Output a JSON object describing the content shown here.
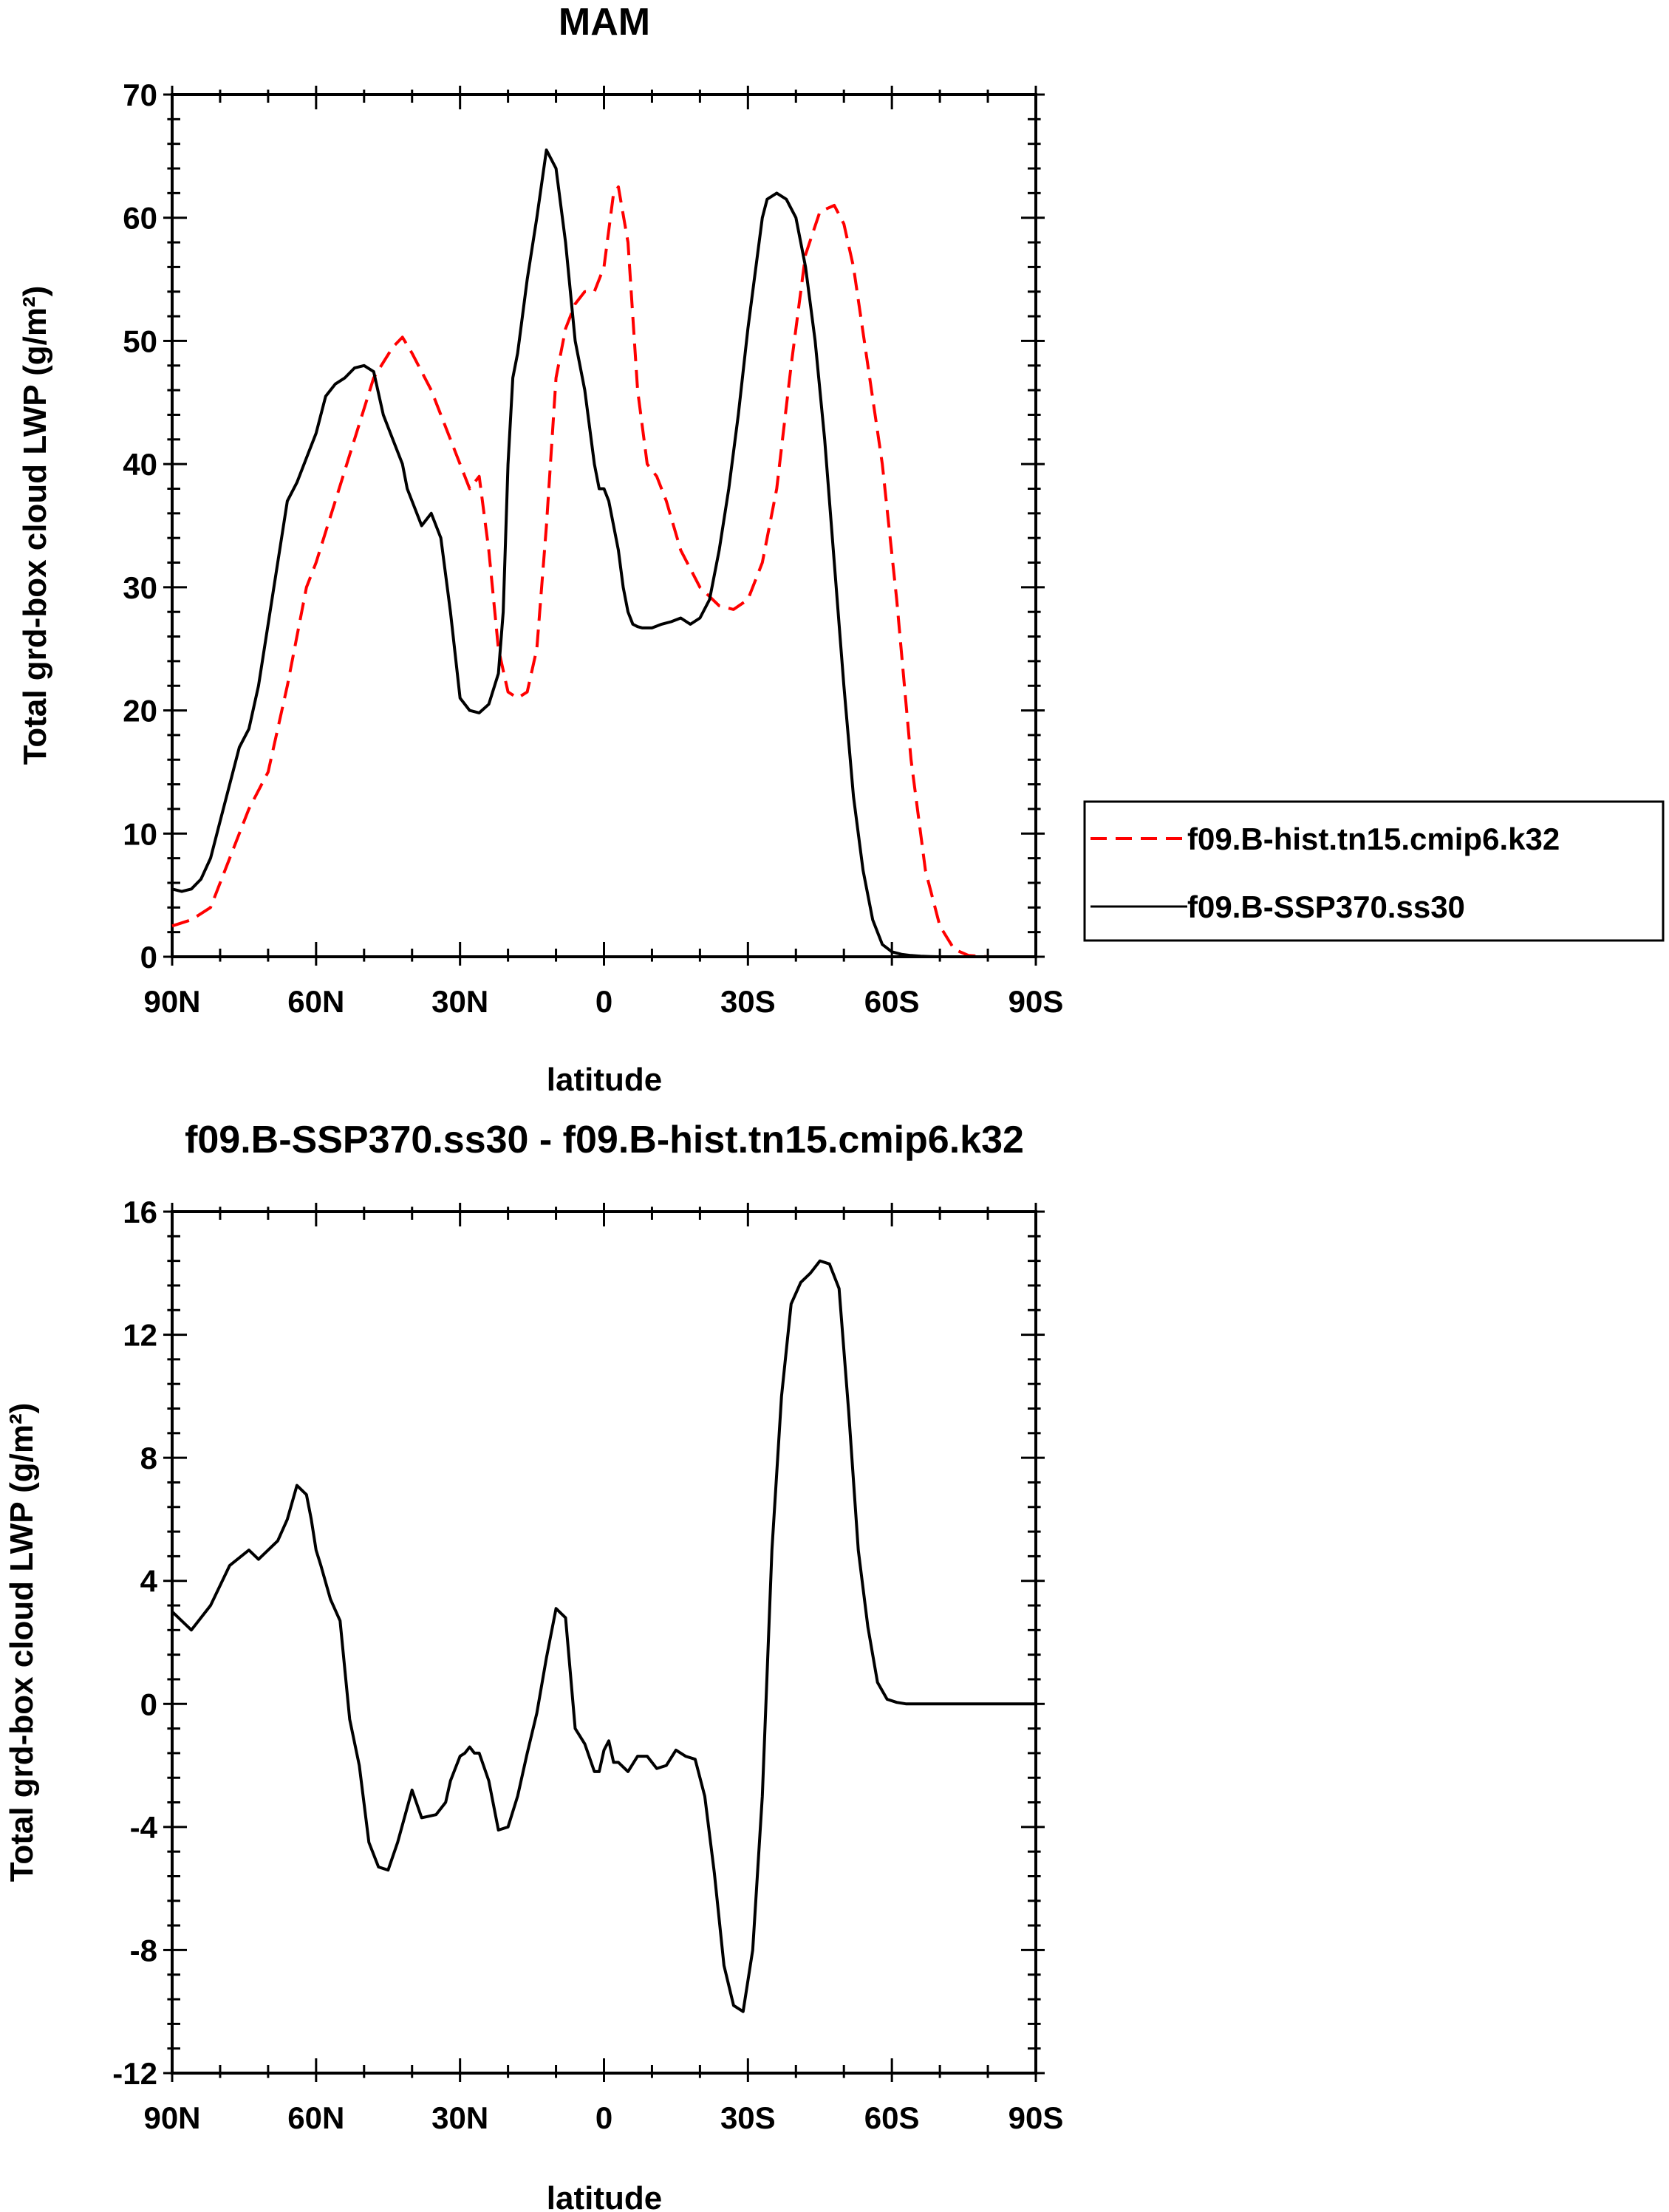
{
  "chart_data": [
    {
      "type": "line",
      "title": "MAM",
      "xlabel": "latitude",
      "ylabel": "Total grd-box cloud LWP (g/m²)",
      "ylim": [
        0,
        70
      ],
      "xlim": [
        90,
        -90
      ],
      "xticks": [
        90,
        60,
        30,
        0,
        -30,
        -60,
        -90
      ],
      "xtick_labels": [
        "90N",
        "60N",
        "30N",
        "0",
        "30S",
        "60S",
        "90S"
      ],
      "yticks": [
        0,
        10,
        20,
        30,
        40,
        50,
        60,
        70
      ],
      "ytick_labels": [
        "0",
        "10",
        "20",
        "30",
        "40",
        "50",
        "60",
        "70"
      ],
      "legend_position": "right",
      "series": [
        {
          "name": "f09.B-hist.tn15.cmip6.k32",
          "color": "#ff0000",
          "dash": true,
          "x": [
            90,
            86,
            82,
            78,
            74,
            70,
            66,
            62,
            60,
            56,
            52,
            48,
            44,
            42,
            40,
            36,
            32,
            28,
            26,
            24,
            22,
            20,
            18,
            16,
            14,
            12,
            10,
            8,
            6,
            4,
            2,
            0,
            -2,
            -3,
            -5,
            -7,
            -9,
            -11,
            -13,
            -16,
            -20,
            -24,
            -27,
            -30,
            -33,
            -36,
            -39,
            -42,
            -45,
            -48,
            -50,
            -52,
            -55,
            -58,
            -61,
            -64,
            -67,
            -70,
            -73,
            -76,
            -80,
            -90
          ],
          "y": [
            2.5,
            3,
            4,
            8,
            12,
            15,
            22,
            30,
            32,
            37,
            42,
            47,
            49.5,
            50.3,
            49,
            46,
            42,
            38,
            39,
            33,
            25,
            21.5,
            21,
            21.5,
            25,
            35,
            47,
            51,
            53,
            54,
            54,
            56,
            62,
            62.5,
            58,
            46,
            40,
            39,
            37,
            33,
            30,
            28.5,
            28.2,
            29,
            32,
            38,
            48,
            57,
            60.5,
            61,
            59.5,
            56,
            48,
            40,
            29,
            16,
            7,
            2.5,
            0.6,
            0.1,
            0,
            0
          ]
        },
        {
          "name": "f09.B-SSP370.ss30",
          "color": "#000000",
          "dash": false,
          "x": [
            90,
            88,
            86,
            84,
            82,
            80,
            78,
            76,
            74,
            72,
            70,
            68,
            66,
            64,
            62,
            60,
            58,
            56,
            54,
            52,
            50,
            48,
            46,
            44,
            42,
            41,
            40,
            38,
            36,
            34,
            32,
            30,
            28,
            26,
            24,
            22,
            21,
            20,
            19,
            18,
            17,
            16,
            14,
            12,
            10,
            8,
            6,
            4,
            2,
            1,
            0,
            -1,
            -2,
            -3,
            -4,
            -5,
            -6,
            -7,
            -8,
            -10,
            -12,
            -14,
            -16,
            -18,
            -20,
            -22,
            -24,
            -26,
            -28,
            -30,
            -32,
            -33,
            -34,
            -36,
            -38,
            -40,
            -42,
            -44,
            -46,
            -48,
            -50,
            -52,
            -54,
            -56,
            -58,
            -60,
            -62,
            -64,
            -66,
            -68,
            -70,
            -72,
            -74,
            -76,
            -80,
            -90
          ],
          "y": [
            5.5,
            5.3,
            5.5,
            6.3,
            8,
            11,
            14,
            17,
            18.5,
            22,
            27,
            32,
            37,
            38.5,
            40.5,
            42.5,
            45.5,
            46.5,
            47,
            47.8,
            48,
            47.5,
            44,
            42,
            40,
            38,
            37,
            35,
            36,
            34,
            28,
            21,
            20,
            19.8,
            20.5,
            23,
            28,
            40,
            47,
            49,
            52,
            55,
            60,
            65.5,
            64,
            58,
            50,
            46,
            40,
            38,
            38,
            37,
            35,
            33,
            30,
            28,
            27,
            26.8,
            26.7,
            26.7,
            27,
            27.2,
            27.5,
            27,
            27.5,
            29,
            33,
            38,
            44,
            51,
            57,
            60,
            61.5,
            62,
            61.5,
            60,
            56,
            50,
            42,
            32,
            22,
            13,
            7,
            3,
            1,
            0.4,
            0.2,
            0.1,
            0.05,
            0.02,
            0,
            0,
            0,
            0,
            0,
            0
          ]
        }
      ]
    },
    {
      "type": "line",
      "title": "f09.B-SSP370.ss30 - f09.B-hist.tn15.cmip6.k32",
      "xlabel": "latitude",
      "ylabel": "Total grd-box cloud LWP (g/m²)",
      "ylim": [
        -12,
        16
      ],
      "xlim": [
        90,
        -90
      ],
      "xticks": [
        90,
        60,
        30,
        0,
        -30,
        -60,
        -90
      ],
      "xtick_labels": [
        "90N",
        "60N",
        "30N",
        "0",
        "30S",
        "60S",
        "90S"
      ],
      "yticks": [
        -12,
        -8,
        -4,
        0,
        4,
        8,
        12,
        16
      ],
      "ytick_labels": [
        "-12",
        "-8",
        "-4",
        "0",
        "4",
        "8",
        "12",
        "16"
      ],
      "series": [
        {
          "color": "#000000",
          "dash": false,
          "x": [
            90,
            86,
            82,
            78,
            74,
            72,
            70,
            68,
            66,
            64,
            62,
            61,
            60,
            59,
            57,
            55,
            53,
            51,
            49,
            47,
            45,
            43,
            40,
            38,
            35,
            33,
            32,
            31,
            30,
            29,
            28,
            27,
            26,
            24,
            22,
            20,
            18,
            16,
            14,
            12,
            10,
            8,
            7,
            6,
            4,
            2,
            1,
            0,
            -1,
            -2,
            -3,
            -5,
            -7,
            -9,
            -11,
            -13,
            -15,
            -17,
            -19,
            -21,
            -23,
            -25,
            -27,
            -29,
            -31,
            -33,
            -35,
            -37,
            -39,
            -41,
            -43,
            -45,
            -47,
            -49,
            -51,
            -53,
            -55,
            -57,
            -59,
            -61,
            -63,
            -64,
            -65,
            -67,
            -69,
            -71,
            -73,
            -75,
            -78,
            -82,
            -90
          ],
          "y": [
            3,
            2.4,
            3.2,
            4.5,
            5,
            4.7,
            5,
            5.3,
            6,
            7.1,
            6.8,
            6,
            5,
            4.5,
            3.4,
            2.7,
            -0.5,
            -2,
            -4.5,
            -5.3,
            -5.4,
            -4.5,
            -2.8,
            -3.7,
            -3.6,
            -3.2,
            -2.5,
            -2.1,
            -1.7,
            -1.6,
            -1.4,
            -1.6,
            -1.6,
            -2.5,
            -4.1,
            -4,
            -3,
            -1.6,
            -0.3,
            1.5,
            3.1,
            2.8,
            1,
            -0.8,
            -1.3,
            -2.2,
            -2.2,
            -1.5,
            -1.2,
            -1.9,
            -1.9,
            -2.2,
            -1.7,
            -1.7,
            -2.1,
            -2,
            -1.5,
            -1.7,
            -1.8,
            -3,
            -5.5,
            -8.5,
            -9.8,
            -10,
            -8,
            -3,
            5,
            10,
            13,
            13.7,
            14,
            14.4,
            14.3,
            13.5,
            9.5,
            5,
            2.5,
            0.7,
            0.15,
            0.05,
            0,
            0,
            0,
            0,
            0,
            0,
            0,
            0,
            0,
            0,
            0
          ]
        }
      ]
    }
  ]
}
